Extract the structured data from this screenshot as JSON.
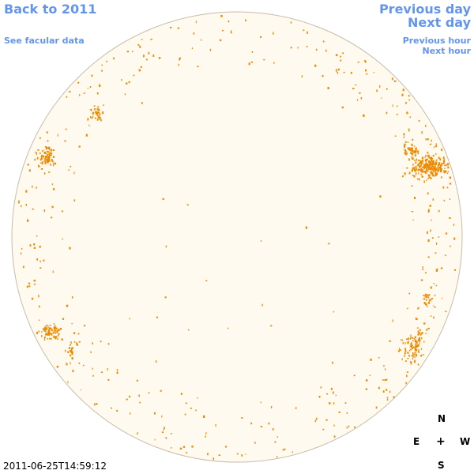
{
  "nav": {
    "back_label": "Back to 2011",
    "facular_label": "See facular data",
    "prev_day_label": "Previous day",
    "next_day_label": "Next day",
    "prev_hour_label": "Previous hour",
    "next_hour_label": "Next hour"
  },
  "compass": {
    "north": "N",
    "east": "E",
    "center": "+",
    "west": "W",
    "south": "S"
  },
  "timestamp": "2011-06-25T14:59:12",
  "colors": {
    "link": "#6495ed",
    "disk_fill": "#fffaf0",
    "disk_outline": "#c8bca8",
    "faculae": "#ee8a00"
  }
}
